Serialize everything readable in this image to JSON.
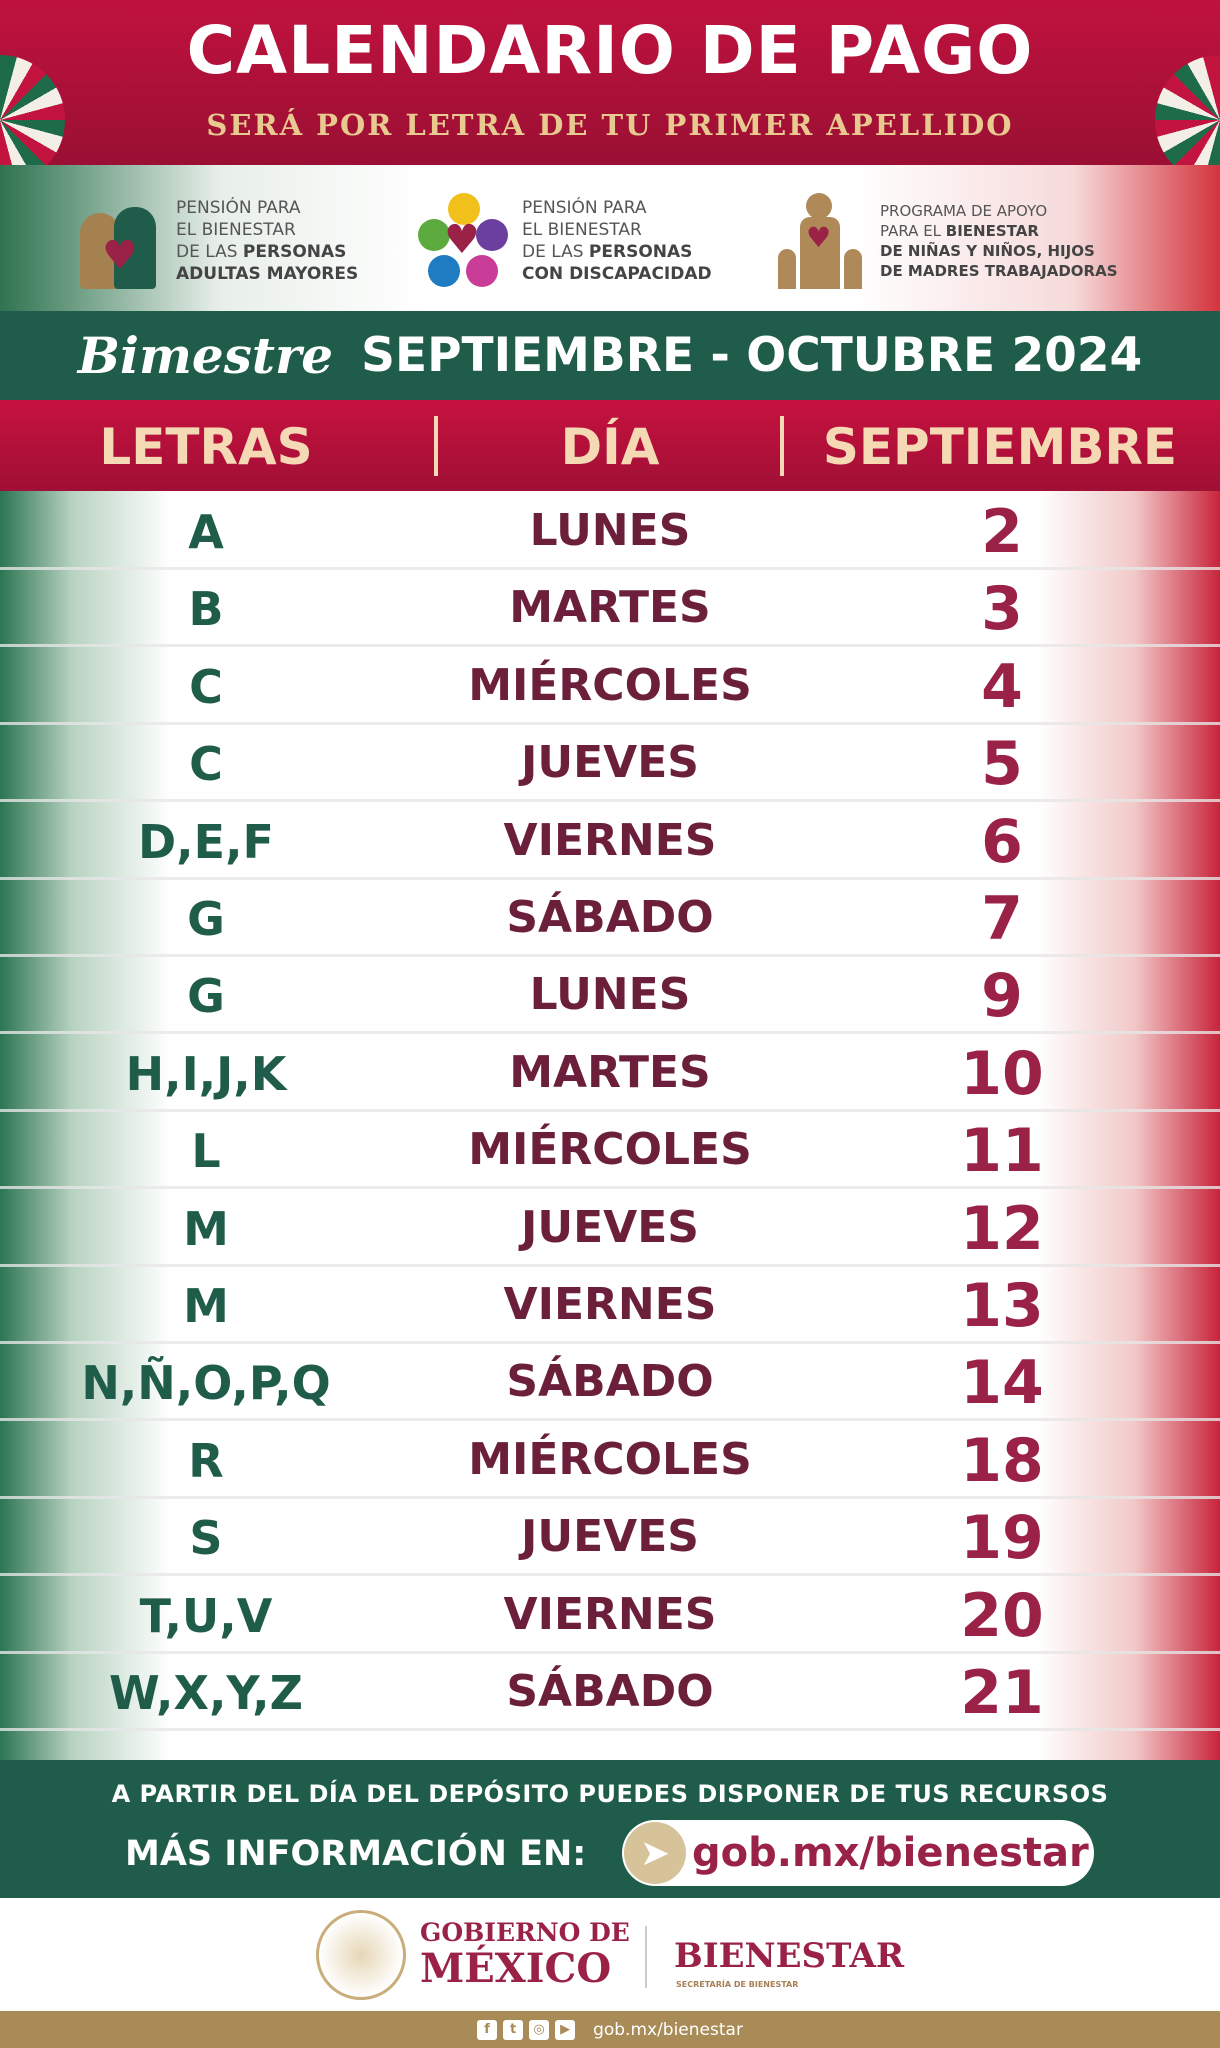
{
  "header": {
    "title": "CALENDARIO DE PAGO",
    "subtitle": "SERÁ POR LETRA DE TU PRIMER APELLIDO"
  },
  "programs": [
    {
      "l1": "PENSIÓN PARA",
      "l2": "EL BIENESTAR",
      "l3a": "DE LAS ",
      "l3b": "PERSONAS",
      "l4": "ADULTAS MAYORES",
      "icon": "elderly-couple-icon"
    },
    {
      "l1": "PENSIÓN PARA",
      "l2": "EL BIENESTAR",
      "l3a": "DE  LAS ",
      "l3b": "PERSONAS",
      "l4": "CON DISCAPACIDAD",
      "icon": "disability-icon"
    },
    {
      "l1": "PROGRAMA DE APOYO",
      "l2a": "PARA EL ",
      "l2b": "BIENESTAR",
      "l3": "DE NIÑAS Y NIÑOS, HIJOS",
      "l4": "DE MADRES TRABAJADORAS",
      "icon": "mother-children-icon"
    }
  ],
  "period": {
    "label": "Bimestre",
    "months": "SEPTIEMBRE - OCTUBRE 2024"
  },
  "table": {
    "headers": [
      "LETRAS",
      "DÍA",
      "SEPTIEMBRE"
    ],
    "rows": [
      [
        "A",
        "LUNES",
        "2"
      ],
      [
        "B",
        "MARTES",
        "3"
      ],
      [
        "C",
        "MIÉRCOLES",
        "4"
      ],
      [
        "C",
        "JUEVES",
        "5"
      ],
      [
        "D,E,F",
        "VIERNES",
        "6"
      ],
      [
        "G",
        "SÁBADO",
        "7"
      ],
      [
        "G",
        "LUNES",
        "9"
      ],
      [
        "H,I,J,K",
        "MARTES",
        "10"
      ],
      [
        "L",
        "MIÉRCOLES",
        "11"
      ],
      [
        "M",
        "JUEVES",
        "12"
      ],
      [
        "M",
        "VIERNES",
        "13"
      ],
      [
        "N,Ñ,O,P,Q",
        "SÁBADO",
        "14"
      ],
      [
        "R",
        "MIÉRCOLES",
        "18"
      ],
      [
        "S",
        "JUEVES",
        "19"
      ],
      [
        "T,U,V",
        "VIERNES",
        "20"
      ],
      [
        "W,X,Y,Z",
        "SÁBADO",
        "21"
      ]
    ]
  },
  "footer": {
    "notice": "A PARTIR DEL DÍA DEL DEPÓSITO PUEDES DISPONER DE TUS RECURSOS",
    "more": "MÁS INFORMACIÓN EN:",
    "url": "gob.mx/bienestar"
  },
  "logos": {
    "gob1": "GOBIERNO DE",
    "gob2": "MÉXICO",
    "bienestar": "BIENESTAR",
    "secretaria": "SECRETARÍA DE BIENESTAR",
    "seal": "ESTADOS UNIDOS MEXICANOS"
  },
  "social": {
    "url": "gob.mx/bienestar",
    "icons": [
      "facebook-icon",
      "twitter-icon",
      "instagram-icon",
      "youtube-icon"
    ]
  },
  "colors": {
    "red": "#b1113a",
    "green": "#1f5c4a",
    "maroon": "#6b1f3a",
    "wine": "#9b2247",
    "gold": "#a98b57"
  }
}
